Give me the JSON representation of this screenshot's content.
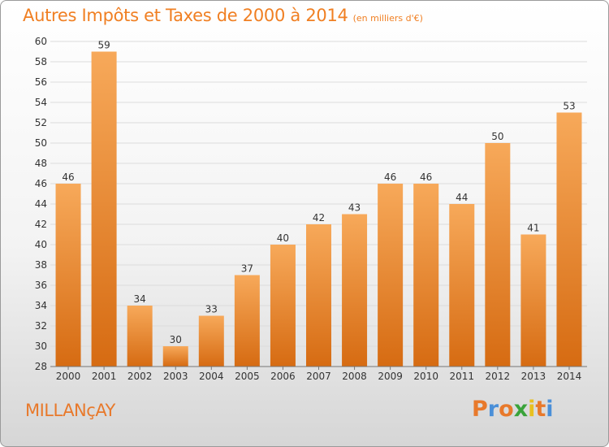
{
  "header": {
    "title": "Autres Impôts et Taxes de 2000 à 2014",
    "unit": "(en milliers d'€)"
  },
  "footer": {
    "place": "MILLANçAY",
    "logo_text": "Proxiti"
  },
  "colors": {
    "accent": "#f07f22",
    "bar_top": "#f7a95a",
    "bar_bottom": "#d66b12",
    "logo_letters": [
      "#e8792b",
      "#4a8fd8",
      "#e8792b",
      "#3aa33a",
      "#e8c020",
      "#e8792b",
      "#4a8fd8"
    ]
  },
  "chart_data": {
    "type": "bar",
    "title": "Autres Impôts et Taxes de 2000 à 2014",
    "categories": [
      "2000",
      "2001",
      "2002",
      "2003",
      "2004",
      "2005",
      "2006",
      "2007",
      "2008",
      "2009",
      "2010",
      "2011",
      "2012",
      "2013",
      "2014"
    ],
    "values": [
      46,
      59,
      34,
      30,
      33,
      37,
      40,
      42,
      43,
      46,
      46,
      44,
      50,
      41,
      53
    ],
    "ylim": [
      28,
      60
    ],
    "yticks": [
      28,
      30,
      32,
      34,
      36,
      38,
      40,
      42,
      44,
      46,
      48,
      50,
      52,
      54,
      56,
      58,
      60
    ],
    "grid": true
  }
}
